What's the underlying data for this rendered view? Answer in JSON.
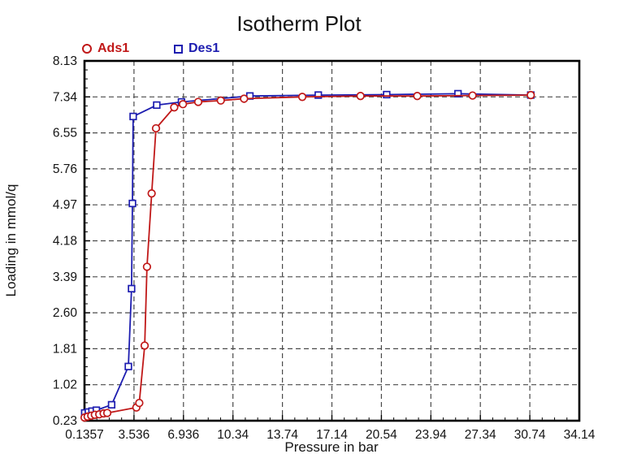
{
  "title": "Isotherm Plot",
  "legend": {
    "ads1_label": "Ads1",
    "des1_label": "Des1"
  },
  "axes": {
    "x_title": "Pressure in bar",
    "y_title": "Loading in mmol/q"
  },
  "colors": {
    "ads1": "#c01818",
    "des1": "#1d1db0",
    "grid": "#4a4a4a",
    "border": "#000000",
    "text": "#141414"
  },
  "chart_data": {
    "type": "line",
    "title": "Isotherm Plot",
    "xlabel": "Pressure in bar",
    "ylabel": "Loading in mmol/q",
    "xlim": [
      0.1357,
      34.1357
    ],
    "ylim": [
      0.23,
      8.13
    ],
    "x_tick_labels": [
      "0.1357",
      "3.536",
      "6.936",
      "10.34",
      "13.74",
      "17.14",
      "20.54",
      "23.94",
      "27.34",
      "30.74",
      "34.14"
    ],
    "x_tick_values": [
      0.1357,
      3.536,
      6.936,
      10.336,
      13.736,
      17.136,
      20.536,
      23.936,
      27.336,
      30.736,
      34.136
    ],
    "y_tick_labels": [
      "0.23",
      "1.02",
      "1.81",
      "2.60",
      "3.39",
      "4.18",
      "4.97",
      "5.76",
      "6.55",
      "7.34",
      "8.13"
    ],
    "y_tick_values": [
      0.23,
      1.02,
      1.81,
      2.6,
      3.39,
      4.18,
      4.97,
      5.76,
      6.55,
      7.34,
      8.13
    ],
    "grid": "dashed",
    "legend_position": "top-left",
    "series": [
      {
        "name": "Des1",
        "color": "#1d1db0",
        "marker": "square",
        "points": [
          [
            0.15,
            0.4
          ],
          [
            0.4,
            0.42
          ],
          [
            0.65,
            0.44
          ],
          [
            0.95,
            0.46
          ],
          [
            2.0,
            0.58
          ],
          [
            3.15,
            1.42
          ],
          [
            3.37,
            3.13
          ],
          [
            3.43,
            5.0
          ],
          [
            3.48,
            6.91
          ],
          [
            5.1,
            7.16
          ],
          [
            6.8,
            7.23
          ],
          [
            11.5,
            7.36
          ],
          [
            16.2,
            7.38
          ],
          [
            20.9,
            7.39
          ],
          [
            25.8,
            7.41
          ],
          [
            30.8,
            7.38
          ]
        ]
      },
      {
        "name": "Ads1",
        "color": "#c01818",
        "marker": "circle",
        "points": [
          [
            0.14,
            0.3
          ],
          [
            0.35,
            0.32
          ],
          [
            0.6,
            0.34
          ],
          [
            0.85,
            0.36
          ],
          [
            1.15,
            0.37
          ],
          [
            1.45,
            0.39
          ],
          [
            1.7,
            0.4
          ],
          [
            3.7,
            0.52
          ],
          [
            3.9,
            0.62
          ],
          [
            4.27,
            1.88
          ],
          [
            4.43,
            3.61
          ],
          [
            4.75,
            5.22
          ],
          [
            5.05,
            6.65
          ],
          [
            6.3,
            7.11
          ],
          [
            6.9,
            7.18
          ],
          [
            7.95,
            7.23
          ],
          [
            9.5,
            7.26
          ],
          [
            11.1,
            7.3
          ],
          [
            15.1,
            7.34
          ],
          [
            19.1,
            7.36
          ],
          [
            23.0,
            7.36
          ],
          [
            26.8,
            7.37
          ],
          [
            30.8,
            7.38
          ]
        ]
      }
    ]
  }
}
